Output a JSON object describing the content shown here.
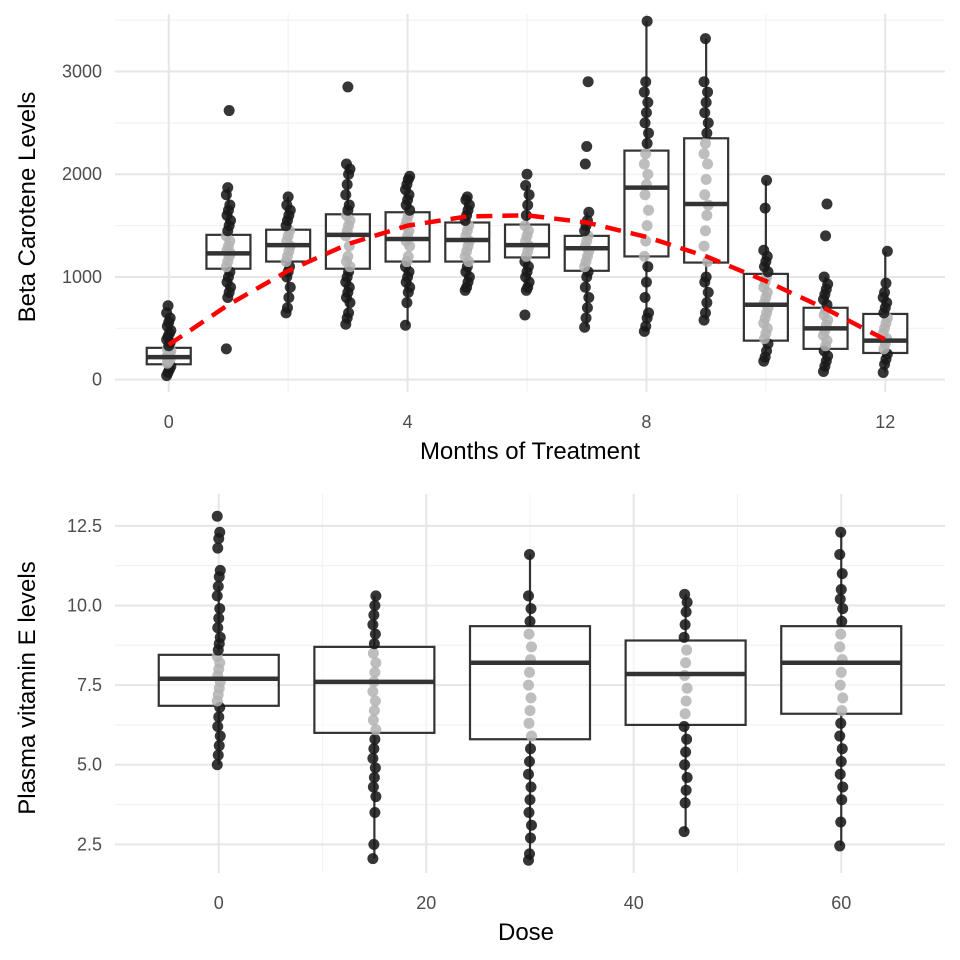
{
  "colors": {
    "point": "#1a1a1a",
    "inner_point": "#b3b3b3",
    "fit_line": "#ff0000",
    "box_stroke": "#333333",
    "grid": "#e6e6e6"
  },
  "chart_data": [
    {
      "type": "box",
      "title": "",
      "xlabel": "Months of Treatment",
      "ylabel": "Beta Carotene Levels",
      "xlim": [
        -0.9,
        13.0
      ],
      "ylim": [
        -120,
        3560
      ],
      "x_ticks": [
        0,
        4,
        8,
        12
      ],
      "x_tick_labels": [
        "0",
        "4",
        "8",
        "12"
      ],
      "y_ticks": [
        0,
        1000,
        2000,
        3000
      ],
      "y_tick_labels": [
        "0",
        "1000",
        "2000",
        "3000"
      ],
      "grid": true,
      "boxes": [
        {
          "x": 0,
          "q1": 150,
          "median": 220,
          "q3": 310,
          "whisker_low": 40,
          "whisker_high": 520
        },
        {
          "x": 1,
          "q1": 1080,
          "median": 1230,
          "q3": 1410,
          "whisker_low": 800,
          "whisker_high": 1870
        },
        {
          "x": 2,
          "q1": 1150,
          "median": 1310,
          "q3": 1460,
          "whisker_low": 650,
          "whisker_high": 1780
        },
        {
          "x": 3,
          "q1": 1080,
          "median": 1410,
          "q3": 1610,
          "whisker_low": 540,
          "whisker_high": 2100
        },
        {
          "x": 4,
          "q1": 1150,
          "median": 1370,
          "q3": 1630,
          "whisker_low": 530,
          "whisker_high": 1980
        },
        {
          "x": 5,
          "q1": 1150,
          "median": 1360,
          "q3": 1530,
          "whisker_low": 870,
          "whisker_high": 1780
        },
        {
          "x": 6,
          "q1": 1190,
          "median": 1310,
          "q3": 1510,
          "whisker_low": 870,
          "whisker_high": 1890
        },
        {
          "x": 7,
          "q1": 1060,
          "median": 1280,
          "q3": 1400,
          "whisker_low": 510,
          "whisker_high": 1630
        },
        {
          "x": 8,
          "q1": 1200,
          "median": 1870,
          "q3": 2230,
          "whisker_low": 470,
          "whisker_high": 3490
        },
        {
          "x": 9,
          "q1": 1140,
          "median": 1710,
          "q3": 2350,
          "whisker_low": 580,
          "whisker_high": 3320
        },
        {
          "x": 10,
          "q1": 380,
          "median": 730,
          "q3": 1030,
          "whisker_low": 180,
          "whisker_high": 1940
        },
        {
          "x": 11,
          "q1": 300,
          "median": 500,
          "q3": 700,
          "whisker_low": 80,
          "whisker_high": 1000
        },
        {
          "x": 12,
          "q1": 260,
          "median": 380,
          "q3": 640,
          "whisker_low": 70,
          "whisker_high": 1250
        }
      ],
      "points": [
        {
          "x": 0,
          "values": [
            40,
            70,
            100,
            130,
            160,
            180,
            200,
            220,
            240,
            260,
            280,
            300,
            330,
            360,
            390,
            420,
            450,
            480,
            520,
            560,
            600,
            650,
            720
          ]
        },
        {
          "x": 1,
          "values": [
            300,
            800,
            850,
            900,
            950,
            1000,
            1050,
            1100,
            1150,
            1200,
            1230,
            1260,
            1300,
            1350,
            1400,
            1450,
            1500,
            1550,
            1600,
            1650,
            1700,
            1800,
            1870,
            2620
          ]
        },
        {
          "x": 2,
          "values": [
            650,
            700,
            800,
            900,
            1000,
            1050,
            1100,
            1150,
            1200,
            1250,
            1300,
            1350,
            1400,
            1450,
            1500,
            1550,
            1600,
            1650,
            1700,
            1780
          ]
        },
        {
          "x": 3,
          "values": [
            540,
            600,
            650,
            750,
            800,
            850,
            900,
            950,
            1000,
            1050,
            1100,
            1150,
            1200,
            1300,
            1400,
            1450,
            1500,
            1550,
            1600,
            1650,
            1700,
            1800,
            1900,
            2000,
            2050,
            2100,
            2850
          ]
        },
        {
          "x": 4,
          "values": [
            530,
            750,
            850,
            900,
            950,
            1000,
            1050,
            1100,
            1150,
            1200,
            1300,
            1350,
            1400,
            1450,
            1500,
            1550,
            1600,
            1650,
            1700,
            1750,
            1800,
            1850,
            1900,
            1950,
            1980
          ]
        },
        {
          "x": 5,
          "values": [
            870,
            900,
            950,
            1000,
            1050,
            1100,
            1150,
            1200,
            1250,
            1300,
            1350,
            1400,
            1450,
            1500,
            1550,
            1600,
            1650,
            1700,
            1750,
            1780
          ]
        },
        {
          "x": 6,
          "values": [
            630,
            870,
            900,
            950,
            1000,
            1050,
            1100,
            1150,
            1200,
            1250,
            1300,
            1350,
            1400,
            1450,
            1500,
            1600,
            1700,
            1800,
            1890,
            2000
          ]
        },
        {
          "x": 7,
          "values": [
            510,
            600,
            700,
            800,
            900,
            1000,
            1050,
            1100,
            1150,
            1200,
            1250,
            1300,
            1350,
            1400,
            1450,
            1500,
            1550,
            1630,
            2100,
            2270,
            2900
          ]
        },
        {
          "x": 8,
          "values": [
            470,
            520,
            600,
            650,
            800,
            950,
            1100,
            1200,
            1350,
            1500,
            1650,
            1800,
            1900,
            2000,
            2100,
            2200,
            2300,
            2400,
            2500,
            2600,
            2700,
            2800,
            2900,
            3490
          ]
        },
        {
          "x": 9,
          "values": [
            580,
            650,
            750,
            850,
            950,
            1000,
            1150,
            1300,
            1450,
            1600,
            1700,
            1800,
            1950,
            2100,
            2200,
            2300,
            2400,
            2500,
            2600,
            2700,
            2800,
            2900,
            3320
          ]
        },
        {
          "x": 10,
          "values": [
            180,
            220,
            280,
            350,
            400,
            450,
            500,
            550,
            600,
            650,
            700,
            750,
            800,
            850,
            900,
            950,
            1000,
            1050,
            1100,
            1150,
            1200,
            1260,
            1670,
            1940
          ]
        },
        {
          "x": 11,
          "values": [
            80,
            130,
            180,
            230,
            280,
            330,
            380,
            430,
            480,
            530,
            580,
            630,
            680,
            730,
            780,
            830,
            880,
            930,
            1000,
            1400,
            1710
          ]
        },
        {
          "x": 12,
          "values": [
            70,
            150,
            200,
            250,
            300,
            350,
            400,
            450,
            500,
            550,
            600,
            650,
            700,
            750,
            800,
            850,
            940,
            1250
          ]
        }
      ],
      "fit_line": {
        "style": "dashed",
        "x": [
          0,
          1,
          2,
          3,
          4,
          5,
          6,
          7,
          8,
          9,
          10,
          11,
          12
        ],
        "y": [
          340,
          730,
          1060,
          1320,
          1500,
          1590,
          1600,
          1530,
          1390,
          1200,
          960,
          690,
          390
        ]
      }
    },
    {
      "type": "box",
      "title": "",
      "xlabel": "Dose",
      "ylabel": "Plasma vitamin E levels",
      "xlim": [
        -10,
        70
      ],
      "ylim": [
        1.6,
        13.5
      ],
      "x_ticks": [
        0,
        20,
        40,
        60
      ],
      "x_tick_labels": [
        "0",
        "20",
        "40",
        "60"
      ],
      "y_ticks": [
        2.5,
        5.0,
        7.5,
        10.0,
        12.5
      ],
      "y_tick_labels": [
        "2.5",
        "5.0",
        "7.5",
        "10.0",
        "12.5"
      ],
      "grid": true,
      "boxes": [
        {
          "x": 0,
          "q1": 6.85,
          "median": 7.7,
          "q3": 8.45,
          "whisker_low": 5.0,
          "whisker_high": 10.6
        },
        {
          "x": 15,
          "q1": 6.0,
          "median": 7.6,
          "q3": 8.7,
          "whisker_low": 2.05,
          "whisker_high": 10.3
        },
        {
          "x": 30,
          "q1": 5.8,
          "median": 8.2,
          "q3": 9.35,
          "whisker_low": 2.0,
          "whisker_high": 11.6
        },
        {
          "x": 45,
          "q1": 6.25,
          "median": 7.85,
          "q3": 8.9,
          "whisker_low": 2.9,
          "whisker_high": 10.35
        },
        {
          "x": 60,
          "q1": 6.6,
          "median": 8.2,
          "q3": 9.35,
          "whisker_low": 2.45,
          "whisker_high": 12.3
        }
      ],
      "points": [
        {
          "x": 0,
          "values": [
            5.0,
            5.3,
            5.6,
            5.9,
            6.2,
            6.5,
            6.8,
            7.0,
            7.2,
            7.4,
            7.6,
            7.8,
            8.0,
            8.2,
            8.4,
            8.6,
            8.8,
            9.0,
            9.3,
            9.6,
            9.9,
            10.3,
            10.6,
            10.9,
            11.1,
            11.8,
            12.1,
            12.3,
            12.8
          ]
        },
        {
          "x": 15,
          "values": [
            2.05,
            2.5,
            3.5,
            4.0,
            4.3,
            4.6,
            4.9,
            5.2,
            5.5,
            5.8,
            6.1,
            6.4,
            6.7,
            7.0,
            7.3,
            7.6,
            7.9,
            8.2,
            8.5,
            8.8,
            9.1,
            9.4,
            9.7,
            10.0,
            10.3
          ]
        },
        {
          "x": 30,
          "values": [
            2.0,
            2.2,
            2.7,
            3.1,
            3.5,
            3.9,
            4.3,
            4.7,
            5.1,
            5.5,
            5.9,
            6.3,
            6.7,
            7.1,
            7.5,
            7.9,
            8.3,
            8.7,
            9.1,
            9.5,
            9.9,
            10.3,
            11.6
          ]
        },
        {
          "x": 45,
          "values": [
            2.9,
            3.8,
            4.2,
            4.6,
            5.0,
            5.4,
            5.8,
            6.2,
            6.6,
            7.0,
            7.4,
            7.8,
            8.2,
            8.6,
            9.0,
            9.4,
            9.8,
            10.1,
            10.35
          ]
        },
        {
          "x": 60,
          "values": [
            2.45,
            3.2,
            3.9,
            4.3,
            4.7,
            5.1,
            5.5,
            5.9,
            6.3,
            6.7,
            7.1,
            7.5,
            7.9,
            8.3,
            8.7,
            9.1,
            9.5,
            9.9,
            10.2,
            10.5,
            11.0,
            11.6,
            12.3
          ]
        }
      ]
    }
  ]
}
